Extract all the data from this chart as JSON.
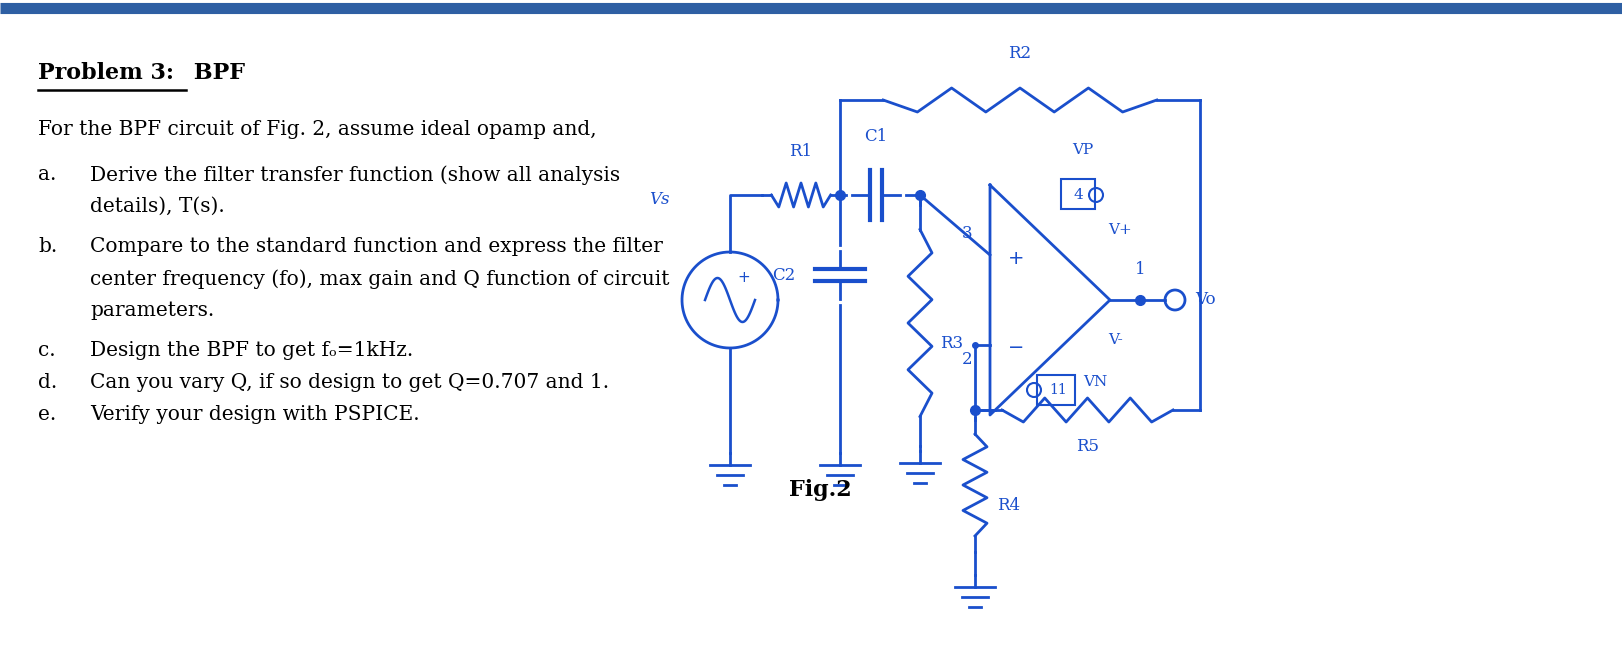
{
  "bg_color": "#ffffff",
  "border_color": "#2e5fa3",
  "title_bold": "Problem 3:",
  "title_normal": " BPF",
  "circuit_color": "#1a4fcc",
  "text_color": "#000000",
  "fig_label": "Fig.2",
  "text_lines": [
    "For the BPF circuit of Fig. 2, assume ideal opamp and,",
    "Derive the filter transfer function (show all analysis",
    "details), T(s).",
    "Compare to the standard function and express the filter",
    "center frequency (fo), max gain and Q function of circuit",
    "parameters.",
    "Design the BPF to get fₒ=1kHz.",
    "Can you vary Q, if so design to get Q=0.707 and 1.",
    "Verify your design with PSPICE."
  ],
  "list_labels": [
    "a.",
    "b.",
    "c.",
    "d.",
    "e."
  ]
}
